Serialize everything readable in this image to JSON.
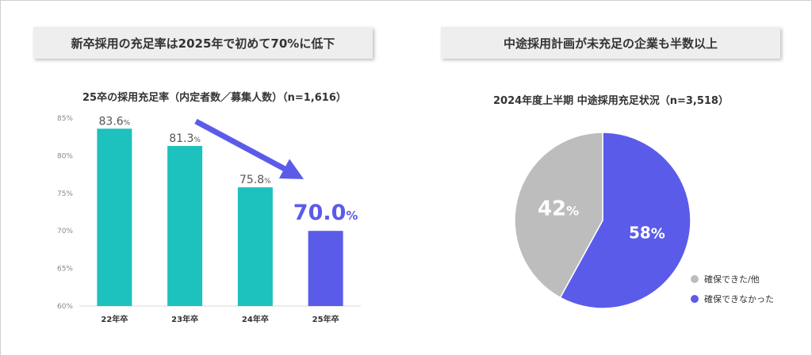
{
  "left_panel": {
    "headline": "新卒採用の充足率は2025年で初めて70%に低下",
    "subtitle": "25卒の採用充足率（内定者数／募集人数）（n=1,616）"
  },
  "right_panel": {
    "headline": "中途採用計画が未充足の企業も半数以上",
    "subtitle": "2024年度上半期 中途採用充足状況（n=3,518）"
  },
  "colors": {
    "teal": "#1dc1bd",
    "purple": "#5b5bea",
    "gray": "#bdbdbd"
  },
  "chart_data": [
    {
      "type": "bar",
      "title": "25卒の採用充足率（内定者数／募集人数）（n=1,616）",
      "categories": [
        "22年卒",
        "23年卒",
        "24年卒",
        "25年卒"
      ],
      "values": [
        83.6,
        81.3,
        75.8,
        70.0
      ],
      "value_labels": [
        "83.6",
        "81.3",
        "75.8",
        "70.0"
      ],
      "value_unit": "%",
      "ylim": [
        60,
        85
      ],
      "yticks": [
        60,
        65,
        70,
        75,
        80,
        85
      ],
      "ytick_labels": [
        "60%",
        "65%",
        "70%",
        "75%",
        "80%",
        "85%"
      ],
      "highlight_index": 3,
      "grid": false,
      "annotation": "downward-trend-arrow"
    },
    {
      "type": "pie",
      "title": "2024年度上半期 中途採用充足状況（n=3,518）",
      "slices": [
        {
          "label": "確保できなかった",
          "value": 58,
          "display": "58%",
          "color": "#5b5bea"
        },
        {
          "label": "確保できた/他",
          "value": 42,
          "display": "42%",
          "color": "#bdbdbd"
        }
      ],
      "legend_placement": "bottom-right"
    }
  ]
}
